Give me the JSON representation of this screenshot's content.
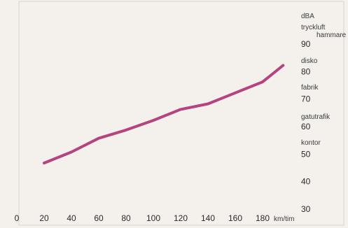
{
  "chart_data": {
    "type": "line",
    "title": "",
    "y_unit": "dBA",
    "x_unit": "km/tim",
    "x_ticks": [
      0,
      20,
      40,
      60,
      80,
      100,
      120,
      140,
      160,
      180
    ],
    "y_ticks": [
      30,
      40,
      50,
      60,
      70,
      80,
      90
    ],
    "xlim": [
      0,
      200
    ],
    "ylim": [
      30,
      94
    ],
    "grid": false,
    "line_color": "#b5437f",
    "series": [
      {
        "x": [
          20,
          40,
          60,
          80,
          100,
          120,
          140,
          160,
          180,
          195
        ],
        "y": [
          46.5,
          50.5,
          55.5,
          58.5,
          62,
          66,
          68,
          72,
          76,
          82
        ]
      }
    ],
    "reference_levels": [
      {
        "label": "tryckluft",
        "value": 93
      },
      {
        "label": "hammare",
        "value": 91.5
      },
      {
        "label": "disko",
        "value": 84
      },
      {
        "label": "fabrik",
        "value": 73.5
      },
      {
        "label": "gatutrafik",
        "value": 64
      },
      {
        "label": "kontor",
        "value": 54
      }
    ]
  }
}
